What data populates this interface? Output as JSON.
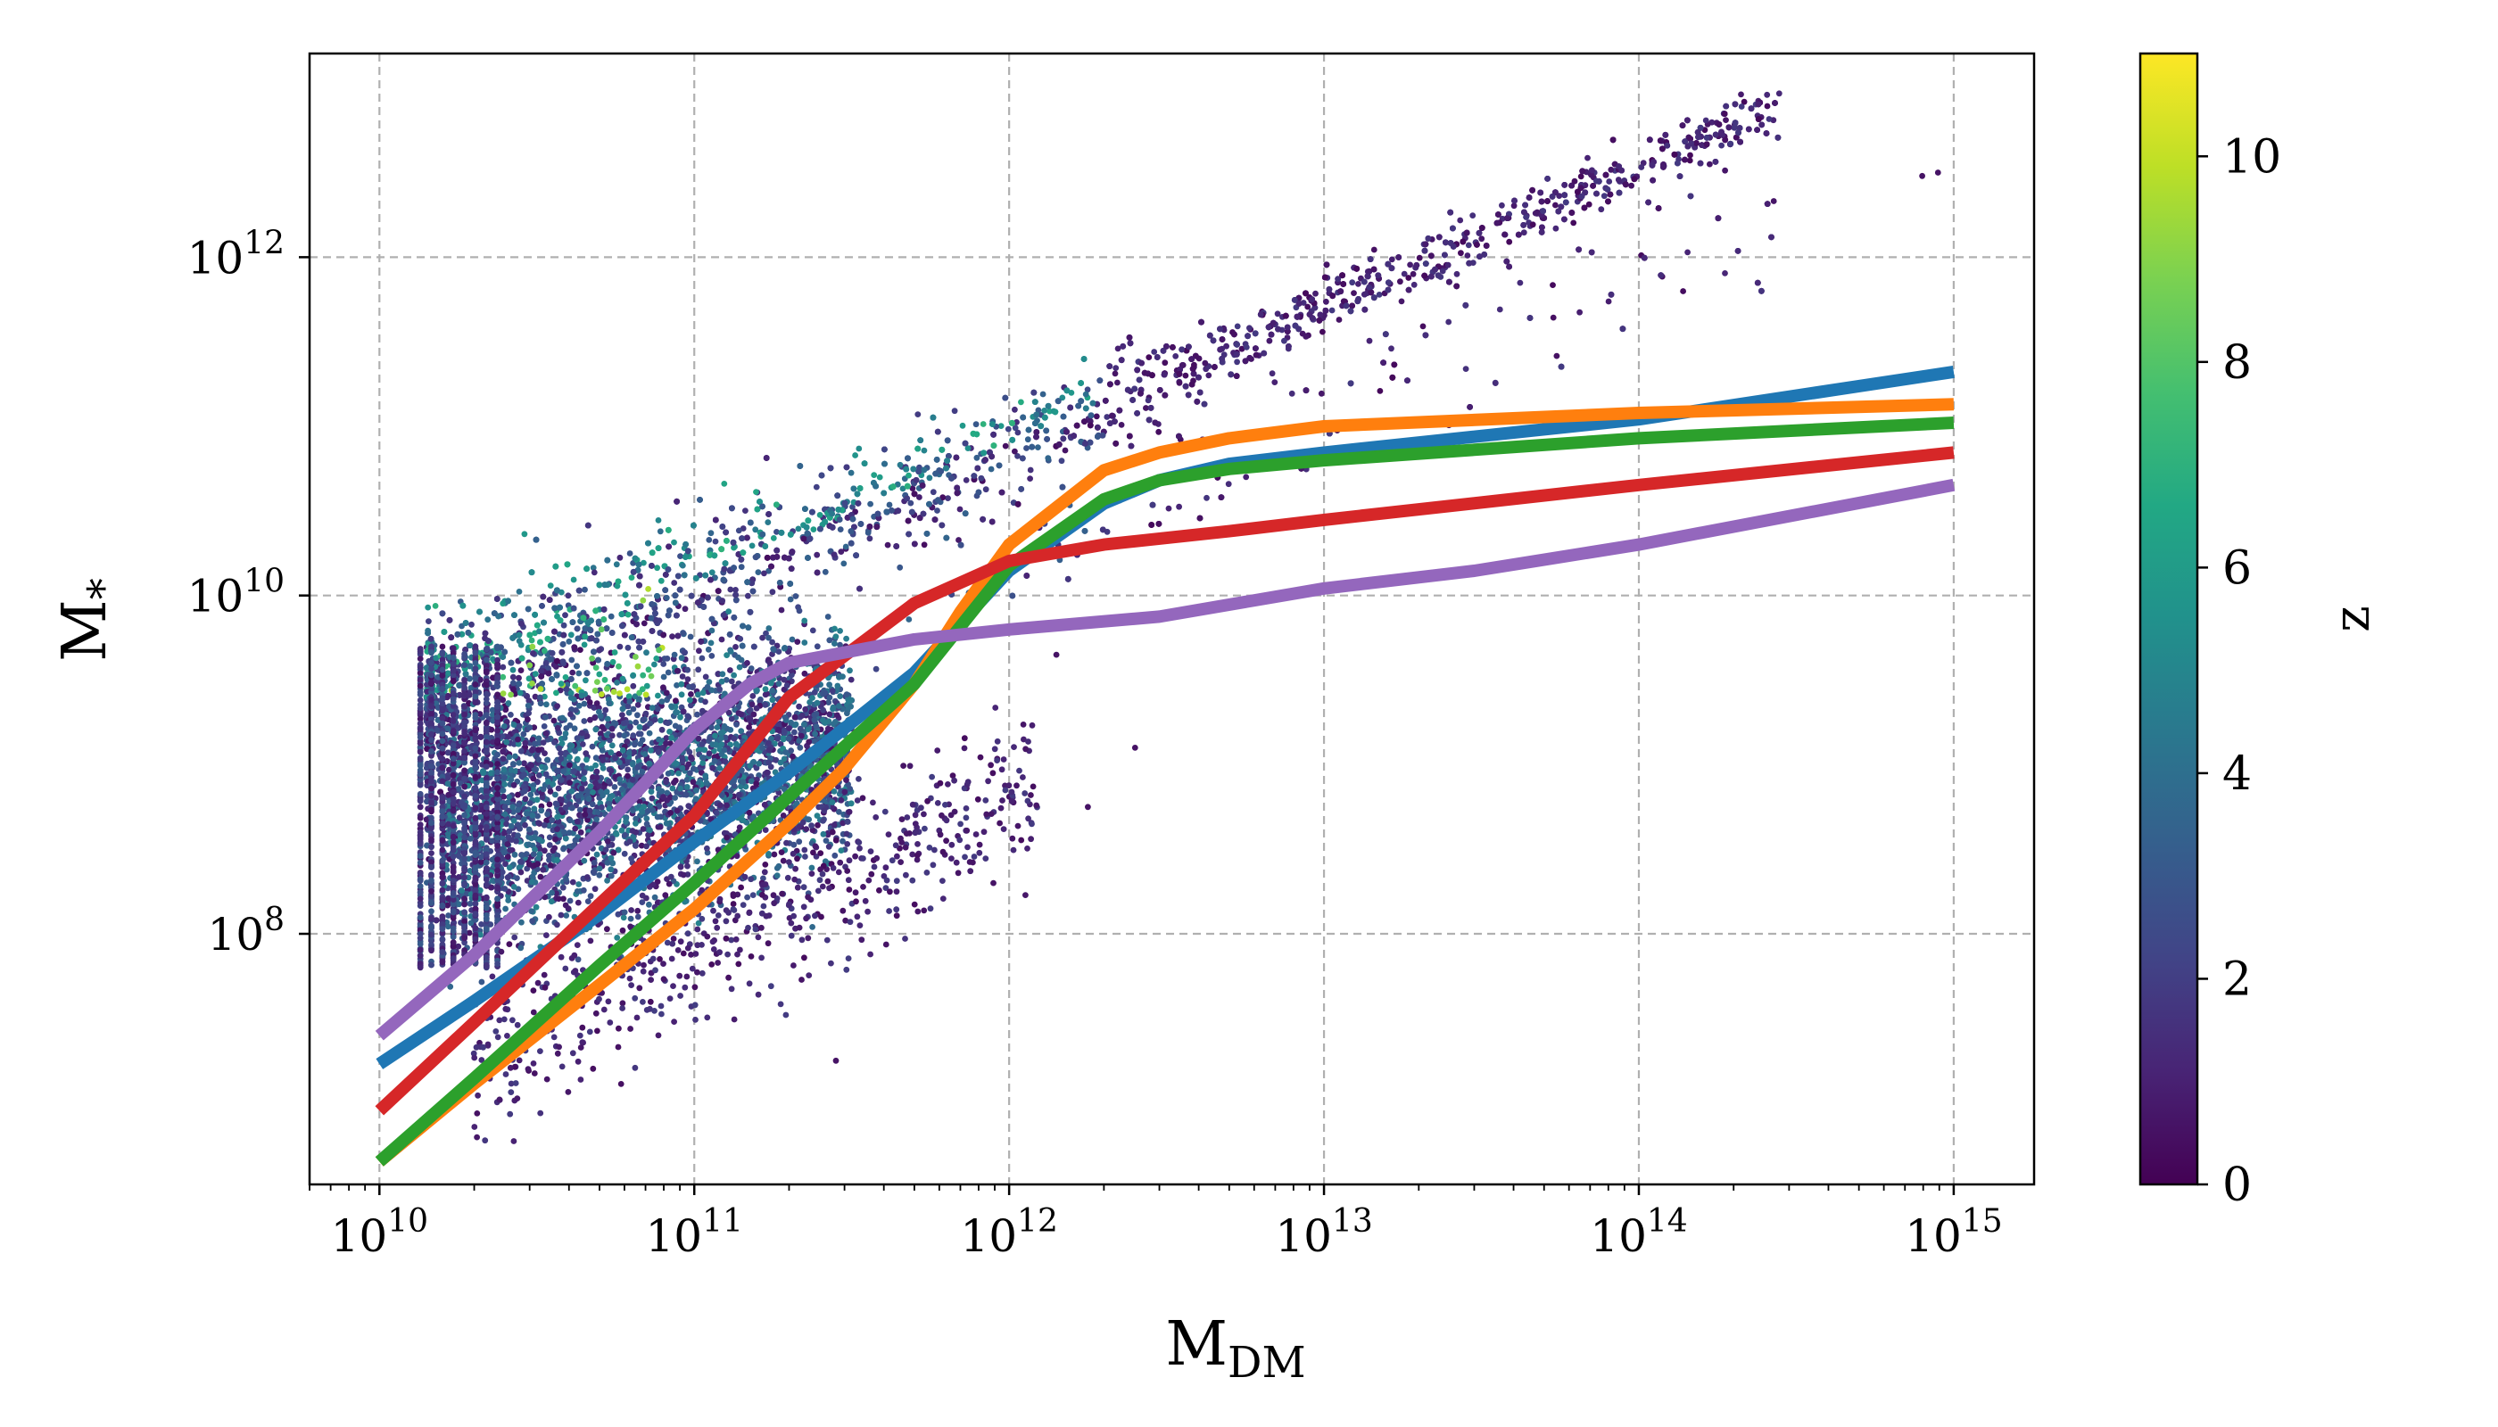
{
  "chart_data": {
    "type": "scatter",
    "title": "",
    "xlabel": "M",
    "xlabel_sub": "DM",
    "ylabel": "M",
    "ylabel_sub": "*",
    "xscale": "log",
    "yscale": "log",
    "xlim": [
      6000000000.0,
      1800000000000000.0
    ],
    "ylim": [
      3300000.0,
      16000000000000.0
    ],
    "grid": true,
    "x_ticks": [
      {
        "base": "10",
        "exp": "10",
        "value": 10000000000.0
      },
      {
        "base": "10",
        "exp": "11",
        "value": 100000000000.0
      },
      {
        "base": "10",
        "exp": "12",
        "value": 1000000000000.0
      },
      {
        "base": "10",
        "exp": "13",
        "value": 10000000000000.0
      },
      {
        "base": "10",
        "exp": "14",
        "value": 100000000000000.0
      },
      {
        "base": "10",
        "exp": "15",
        "value": 1000000000000000.0
      }
    ],
    "y_ticks": [
      {
        "base": "10",
        "exp": "8",
        "value": 100000000.0
      },
      {
        "base": "10",
        "exp": "10",
        "value": 10000000000.0
      },
      {
        "base": "10",
        "exp": "12",
        "value": 1000000000000.0
      }
    ],
    "colorbar": {
      "label": "z",
      "range": [
        0,
        11
      ],
      "colormap": "viridis",
      "ticks": [
        "0",
        "2",
        "4",
        "6",
        "8",
        "10"
      ]
    },
    "scatter_description": {
      "approx_extent_x": [
        14000000000.0,
        300000000000000.0
      ],
      "color_by": "z"
    },
    "series": [
      {
        "color": "#1f77b4",
        "x": [
          10000000000.0,
          20000000000.0,
          50000000000.0,
          100000000000.0,
          200000000000.0,
          500000000000.0,
          1000000000000.0,
          2000000000000.0,
          3000000000000.0,
          5000000000000.0,
          10000000000000.0,
          100000000000000.0,
          1000000000000000.0
        ],
        "y": [
          17000000.0,
          40000000.0,
          130000000.0,
          350000000.0,
          900000000.0,
          3500000000.0,
          14000000000.0,
          35000000000.0,
          48000000000.0,
          60000000000.0,
          70000000000.0,
          110000000000.0,
          210000000000.0
        ]
      },
      {
        "color": "#ff7f0e",
        "x": [
          10000000000.0,
          20000000000.0,
          50000000000.0,
          100000000000.0,
          200000000000.0,
          300000000000.0,
          500000000000.0,
          700000000000.0,
          1000000000000.0,
          2000000000000.0,
          3000000000000.0,
          5000000000000.0,
          10000000000000.0,
          100000000000000.0,
          1000000000000000.0
        ],
        "y": [
          4500000.0,
          13000000.0,
          50000000.0,
          140000000.0,
          450000000.0,
          950000000.0,
          3000000000.0,
          8000000000.0,
          20000000000.0,
          55000000000.0,
          70000000000.0,
          85000000000.0,
          100000000000.0,
          120000000000.0,
          135000000000.0
        ]
      },
      {
        "color": "#2ca02c",
        "x": [
          10000000000.0,
          20000000000.0,
          50000000000.0,
          100000000000.0,
          200000000000.0,
          500000000000.0,
          1000000000000.0,
          2000000000000.0,
          3000000000000.0,
          5000000000000.0,
          10000000000000.0,
          100000000000000.0,
          1000000000000000.0
        ],
        "y": [
          4500000.0,
          14000000.0,
          65000000.0,
          200000000.0,
          650000000.0,
          3000000000.0,
          15000000000.0,
          37000000000.0,
          48000000000.0,
          56000000000.0,
          63000000000.0,
          85000000000.0,
          105000000000.0
        ]
      },
      {
        "color": "#d62728",
        "x": [
          10000000000.0,
          20000000000.0,
          50000000000.0,
          100000000000.0,
          200000000000.0,
          500000000000.0,
          1000000000000.0,
          2000000000000.0,
          5000000000000.0,
          10000000000000.0,
          100000000000000.0,
          1000000000000000.0
        ],
        "y": [
          9000000.0,
          30000000.0,
          150000000.0,
          500000000.0,
          2500000000.0,
          9000000000.0,
          16000000000.0,
          20000000000.0,
          24000000000.0,
          28000000000.0,
          45000000000.0,
          70000000000.0
        ]
      },
      {
        "color": "#9467bd",
        "x": [
          10000000000.0,
          20000000000.0,
          50000000000.0,
          100000000000.0,
          150000000000.0,
          200000000000.0,
          500000000000.0,
          1000000000000.0,
          3000000000000.0,
          10000000000000.0,
          30000000000000.0,
          100000000000000.0,
          1000000000000000.0
        ],
        "y": [
          25000000.0,
          75000000.0,
          400000000.0,
          1600000000.0,
          3000000000.0,
          4000000000.0,
          5500000000.0,
          6300000000.0,
          7500000000.0,
          11000000000.0,
          14000000000.0,
          20000000000.0,
          45000000000.0
        ]
      }
    ]
  }
}
